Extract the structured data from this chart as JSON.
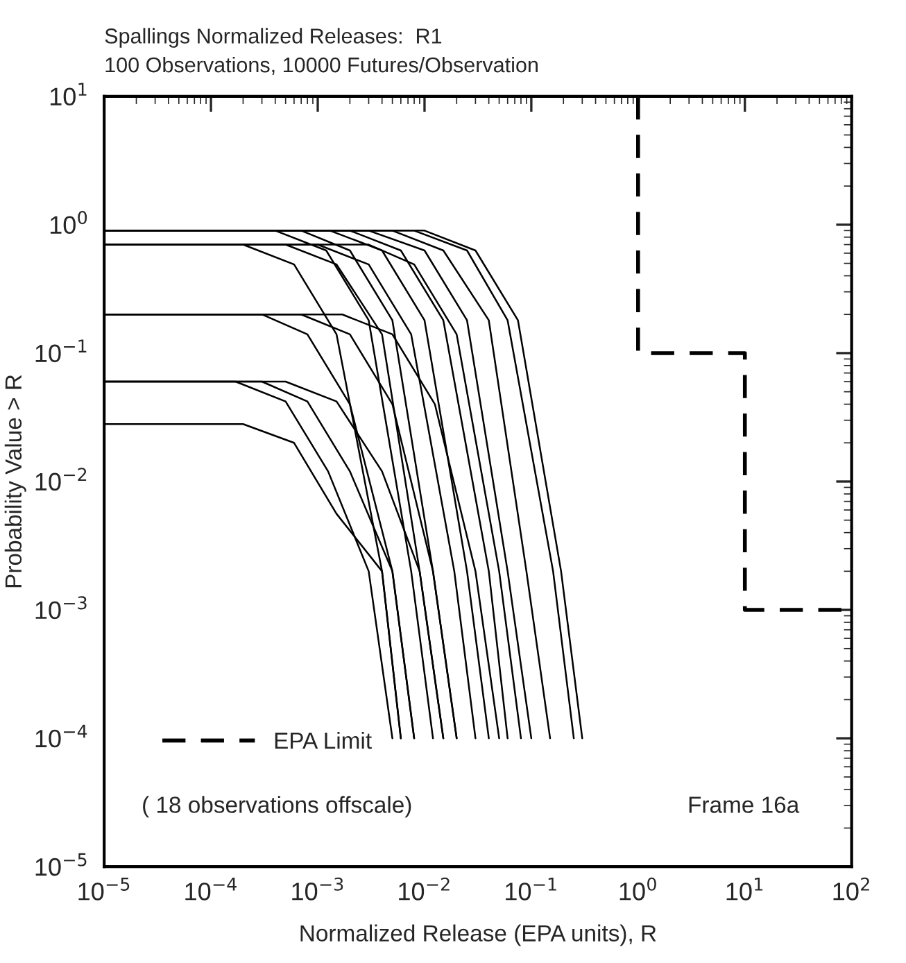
{
  "chart_data": {
    "type": "line",
    "title": "Spallings Normalized Releases:  R1",
    "subtitle": "100 Observations, 10000 Futures/Observation",
    "xlabel": "Normalized Release (EPA units), R",
    "ylabel": "Probability Value > R",
    "log": "xy",
    "xlim": [
      1e-05,
      100
    ],
    "ylim": [
      1e-05,
      10
    ],
    "xticks": [
      {
        "value": 1e-05,
        "label": "10$^{−5}$"
      },
      {
        "value": 0.0001,
        "label": "10$^{−4}$"
      },
      {
        "value": 0.001,
        "label": "10$^{−3}$"
      },
      {
        "value": 0.01,
        "label": "10$^{−2}$"
      },
      {
        "value": 0.1,
        "label": "10$^{−1}$"
      },
      {
        "value": 1,
        "label": "10$^{0}$"
      },
      {
        "value": 10,
        "label": "10$^{1}$"
      },
      {
        "value": 100,
        "label": "10$^{2}$"
      }
    ],
    "yticks": [
      {
        "value": 1e-05,
        "label": "10$^{−5}$"
      },
      {
        "value": 0.0001,
        "label": "10$^{−4}$"
      },
      {
        "value": 0.001,
        "label": "10$^{−3}$"
      },
      {
        "value": 0.01,
        "label": "10$^{−2}$"
      },
      {
        "value": 0.1,
        "label": "10$^{−1}$"
      },
      {
        "value": 1,
        "label": "10$^{0}$"
      },
      {
        "value": 10,
        "label": "10$^{1}$"
      }
    ],
    "grid": false,
    "legend": "bottom left",
    "marker": "none",
    "annotations": [
      "( 18 observations offscale)",
      "Frame 16a"
    ],
    "series": [
      {
        "color": "#000000",
        "line_style": "solid",
        "x": [
          1e-05,
          0.01,
          0.03,
          0.075,
          0.19,
          0.3
        ],
        "values": [
          0.9,
          0.9,
          0.63,
          0.18,
          0.002,
          0.0001
        ]
      },
      {
        "color": "#000000",
        "line_style": "solid",
        "x": [
          1e-05,
          0.008,
          0.025,
          0.06,
          0.16,
          0.25
        ],
        "values": [
          0.9,
          0.9,
          0.63,
          0.18,
          0.002,
          0.0001
        ]
      },
      {
        "color": "#000000",
        "line_style": "solid",
        "x": [
          1e-05,
          0.005,
          0.015,
          0.04,
          0.09,
          0.15
        ],
        "values": [
          0.9,
          0.9,
          0.63,
          0.18,
          0.002,
          0.0001
        ]
      },
      {
        "color": "#000000",
        "line_style": "solid",
        "x": [
          1e-05,
          0.003,
          0.01,
          0.025,
          0.06,
          0.1
        ],
        "values": [
          0.9,
          0.9,
          0.63,
          0.18,
          0.002,
          0.0001
        ]
      },
      {
        "color": "#000000",
        "line_style": "solid",
        "x": [
          1e-05,
          0.002,
          0.006,
          0.015,
          0.04,
          0.06
        ],
        "values": [
          0.9,
          0.9,
          0.63,
          0.18,
          0.002,
          0.0001
        ]
      },
      {
        "color": "#000000",
        "line_style": "solid",
        "x": [
          1e-05,
          0.0013,
          0.004,
          0.01,
          0.025,
          0.04
        ],
        "values": [
          0.9,
          0.9,
          0.63,
          0.18,
          0.002,
          0.0001
        ]
      },
      {
        "color": "#000000",
        "line_style": "solid",
        "x": [
          1e-05,
          0.0007,
          0.002,
          0.005,
          0.012,
          0.02
        ],
        "values": [
          0.9,
          0.9,
          0.63,
          0.18,
          0.002,
          0.0001
        ]
      },
      {
        "color": "#000000",
        "line_style": "solid",
        "x": [
          1e-05,
          0.0004,
          0.0012,
          0.003,
          0.0075,
          0.012
        ],
        "values": [
          0.9,
          0.9,
          0.63,
          0.18,
          0.002,
          0.0001
        ]
      },
      {
        "color": "#000000",
        "line_style": "solid",
        "x": [
          1e-05,
          0.003,
          0.008,
          0.02,
          0.05,
          0.08
        ],
        "values": [
          0.7,
          0.7,
          0.49,
          0.14,
          0.002,
          0.0001
        ]
      },
      {
        "color": "#000000",
        "line_style": "solid",
        "x": [
          1e-05,
          0.001,
          0.003,
          0.0075,
          0.019,
          0.03
        ],
        "values": [
          0.7,
          0.7,
          0.49,
          0.14,
          0.002,
          0.0001
        ]
      },
      {
        "color": "#000000",
        "line_style": "solid",
        "x": [
          1e-05,
          0.0005,
          0.0015,
          0.004,
          0.009,
          0.015
        ],
        "values": [
          0.7,
          0.7,
          0.49,
          0.14,
          0.002,
          0.0001
        ]
      },
      {
        "color": "#000000",
        "line_style": "solid",
        "x": [
          1e-05,
          0.0002,
          0.0006,
          0.0015,
          0.004,
          0.006
        ],
        "values": [
          0.7,
          0.7,
          0.49,
          0.14,
          0.002,
          0.0001
        ]
      },
      {
        "color": "#000000",
        "line_style": "solid",
        "x": [
          1e-05,
          0.0017,
          0.005,
          0.0125,
          0.03,
          0.05
        ],
        "values": [
          0.2,
          0.2,
          0.14,
          0.04,
          0.002,
          0.0001
        ]
      },
      {
        "color": "#000000",
        "line_style": "solid",
        "x": [
          1e-05,
          0.0007,
          0.002,
          0.005,
          0.012,
          0.02
        ],
        "values": [
          0.2,
          0.2,
          0.14,
          0.04,
          0.002,
          0.0001
        ]
      },
      {
        "color": "#000000",
        "line_style": "solid",
        "x": [
          1e-05,
          0.0003,
          0.0008,
          0.002,
          0.005,
          0.008
        ],
        "values": [
          0.2,
          0.2,
          0.14,
          0.04,
          0.002,
          0.0001
        ]
      },
      {
        "color": "#000000",
        "line_style": "solid",
        "x": [
          1e-05,
          0.0005,
          0.0015,
          0.004,
          0.009,
          0.015
        ],
        "values": [
          0.06,
          0.06,
          0.042,
          0.012,
          0.002,
          0.0001
        ]
      },
      {
        "color": "#000000",
        "line_style": "solid",
        "x": [
          1e-05,
          0.0003,
          0.0008,
          0.002,
          0.005,
          0.008
        ],
        "values": [
          0.06,
          0.06,
          0.042,
          0.012,
          0.002,
          0.0001
        ]
      },
      {
        "color": "#000000",
        "line_style": "solid",
        "x": [
          1e-05,
          0.00017,
          0.0005,
          0.00125,
          0.003,
          0.005
        ],
        "values": [
          0.06,
          0.06,
          0.042,
          0.012,
          0.002,
          0.0001
        ]
      },
      {
        "color": "#000000",
        "line_style": "solid",
        "x": [
          1e-05,
          0.0002,
          0.0006,
          0.0015,
          0.004,
          0.006
        ],
        "values": [
          0.028,
          0.028,
          0.02,
          0.0056,
          0.002,
          0.0001
        ]
      },
      {
        "name": "EPA Limit",
        "color": "#000000",
        "line_style": "dashed",
        "x": [
          1,
          1,
          10,
          10,
          100
        ],
        "values": [
          10,
          0.1,
          0.1,
          0.001,
          0.001
        ]
      }
    ]
  }
}
